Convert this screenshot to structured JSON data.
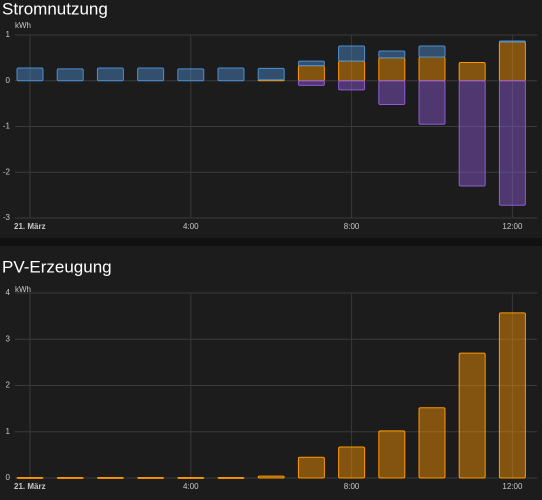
{
  "chart_data": [
    {
      "type": "bar",
      "title": "Stromnutzung",
      "y_label": "kWh",
      "stacked": true,
      "categories": [
        "21. März",
        null,
        null,
        null,
        "4:00",
        null,
        null,
        null,
        "8:00",
        null,
        null,
        null,
        "12:00"
      ],
      "ylim": [
        -3,
        1
      ],
      "yticks": [
        -3,
        -2,
        -1,
        0,
        1
      ],
      "grid": true,
      "series": [
        {
          "color": "#ff9800",
          "values": [
            0,
            0,
            0,
            0,
            0,
            0,
            0.02,
            0.33,
            0.43,
            0.5,
            0.52,
            0.4,
            0.85
          ]
        },
        {
          "color": "#4d8fd1",
          "values": [
            0.28,
            0.26,
            0.28,
            0.28,
            0.26,
            0.28,
            0.25,
            0.1,
            0.33,
            0.15,
            0.24,
            0,
            0.02
          ]
        },
        {
          "color": "#8e5bd6",
          "values": [
            0,
            0,
            0,
            0,
            0,
            0,
            0,
            -0.1,
            -0.2,
            -0.52,
            -0.95,
            -2.3,
            -2.72
          ]
        }
      ]
    },
    {
      "type": "bar",
      "title": "PV-Erzeugung",
      "y_label": "kWh",
      "stacked": true,
      "categories": [
        "21. März",
        null,
        null,
        null,
        "4:00",
        null,
        null,
        null,
        "8:00",
        null,
        null,
        null,
        "12:00"
      ],
      "ylim": [
        0,
        4
      ],
      "yticks": [
        0,
        1,
        2,
        3,
        4
      ],
      "grid": true,
      "series": [
        {
          "color": "#ff9800",
          "values": [
            0.01,
            0.01,
            0.01,
            0.01,
            0.01,
            0.01,
            0.04,
            0.45,
            0.67,
            1.02,
            1.52,
            2.7,
            3.57
          ]
        }
      ]
    }
  ]
}
